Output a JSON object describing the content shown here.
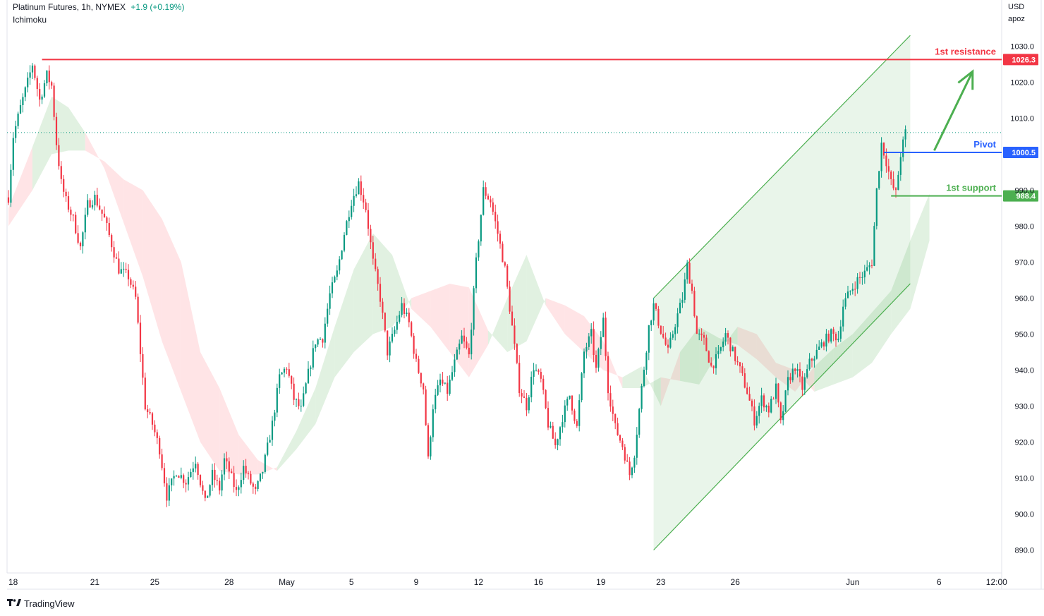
{
  "header": {
    "symbol": "Platinum Futures, 1h, NYMEX",
    "change": "+1.9 (+0.19%)",
    "indicator": "Ichimoku"
  },
  "price_axis": {
    "currency": "USD",
    "unit": "apoz"
  },
  "footer": {
    "brand": "TradingView",
    "logo_icon": "tradingview-logo-icon"
  },
  "colors": {
    "up": "#089981",
    "down": "#f23645",
    "resistance": "#f23645",
    "pivot": "#2962ff",
    "support": "#4caf50",
    "channel": "#4caf50",
    "cloud_bull": "#c8e6c9",
    "cloud_bear": "#ffcdd2"
  },
  "chart_data": {
    "type": "candlestick",
    "title": "Platinum Futures, 1h, NYMEX",
    "y_range": [
      885,
      1035
    ],
    "y_ticks": [
      1030,
      1020,
      1010,
      990,
      980,
      970,
      960,
      950,
      940,
      930,
      920,
      910,
      900,
      890
    ],
    "x_ticks": [
      {
        "label": "18",
        "i": 0
      },
      {
        "label": "21",
        "i": 36
      },
      {
        "label": "25",
        "i": 61
      },
      {
        "label": "28",
        "i": 92
      },
      {
        "label": "May",
        "i": 116
      },
      {
        "label": "5",
        "i": 143
      },
      {
        "label": "9",
        "i": 170
      },
      {
        "label": "12",
        "i": 196
      },
      {
        "label": "16",
        "i": 221
      },
      {
        "label": "19",
        "i": 247
      },
      {
        "label": "23",
        "i": 272
      },
      {
        "label": "26",
        "i": 303
      },
      {
        "label": "Jun",
        "i": 352
      },
      {
        "label": "6",
        "i": 388
      },
      {
        "label": "12:00",
        "i": 412
      }
    ],
    "last_price": 1006,
    "levels": [
      {
        "name": "1st resistance",
        "value": 1026.3,
        "label": "1026.3",
        "from_i": 14
      },
      {
        "name": "Pivot",
        "value": 1000.5,
        "label": "1000.5",
        "from_i": 365
      },
      {
        "name": "1st support",
        "value": 988.4,
        "label": "988.4",
        "from_i": 368
      }
    ],
    "channel": {
      "upper": [
        [
          269,
          960
        ],
        [
          376,
          1033
        ]
      ],
      "lower": [
        [
          269,
          890
        ],
        [
          376,
          964
        ]
      ],
      "end_i": 376
    },
    "arrow": {
      "from": [
        386,
        1001
      ],
      "to": [
        402,
        1023
      ]
    },
    "keypoints": [
      [
        0,
        988
      ],
      [
        2,
        1005
      ],
      [
        5,
        1013
      ],
      [
        8,
        1020
      ],
      [
        10,
        1025
      ],
      [
        13,
        1015
      ],
      [
        16,
        1022
      ],
      [
        18,
        1019
      ],
      [
        20,
        1003
      ],
      [
        22,
        992
      ],
      [
        24,
        987
      ],
      [
        27,
        982
      ],
      [
        30,
        974
      ],
      [
        33,
        986
      ],
      [
        36,
        988
      ],
      [
        40,
        982
      ],
      [
        43,
        975
      ],
      [
        46,
        968
      ],
      [
        50,
        966
      ],
      [
        53,
        960
      ],
      [
        55,
        945
      ],
      [
        57,
        930
      ],
      [
        60,
        925
      ],
      [
        63,
        918
      ],
      [
        66,
        905
      ],
      [
        70,
        912
      ],
      [
        74,
        909
      ],
      [
        78,
        915
      ],
      [
        82,
        903
      ],
      [
        85,
        911
      ],
      [
        88,
        907
      ],
      [
        90,
        915
      ],
      [
        92,
        912
      ],
      [
        95,
        906
      ],
      [
        98,
        913
      ],
      [
        100,
        910
      ],
      [
        103,
        906
      ],
      [
        106,
        912
      ],
      [
        110,
        925
      ],
      [
        113,
        938
      ],
      [
        116,
        941
      ],
      [
        119,
        932
      ],
      [
        122,
        929
      ],
      [
        125,
        939
      ],
      [
        128,
        948
      ],
      [
        131,
        949
      ],
      [
        134,
        961
      ],
      [
        137,
        967
      ],
      [
        140,
        978
      ],
      [
        143,
        987
      ],
      [
        146,
        992
      ],
      [
        149,
        985
      ],
      [
        152,
        970
      ],
      [
        155,
        960
      ],
      [
        158,
        945
      ],
      [
        161,
        951
      ],
      [
        164,
        958
      ],
      [
        167,
        953
      ],
      [
        170,
        942
      ],
      [
        173,
        935
      ],
      [
        175,
        915
      ],
      [
        177,
        930
      ],
      [
        180,
        937
      ],
      [
        183,
        934
      ],
      [
        186,
        942
      ],
      [
        189,
        949
      ],
      [
        192,
        944
      ],
      [
        195,
        970
      ],
      [
        198,
        990
      ],
      [
        201,
        987
      ],
      [
        204,
        978
      ],
      [
        207,
        968
      ],
      [
        210,
        952
      ],
      [
        213,
        935
      ],
      [
        216,
        930
      ],
      [
        219,
        941
      ],
      [
        222,
        937
      ],
      [
        225,
        925
      ],
      [
        228,
        919
      ],
      [
        231,
        927
      ],
      [
        234,
        933
      ],
      [
        237,
        924
      ],
      [
        240,
        945
      ],
      [
        243,
        950
      ],
      [
        245,
        940
      ],
      [
        248,
        954
      ],
      [
        250,
        935
      ],
      [
        253,
        924
      ],
      [
        256,
        919
      ],
      [
        259,
        911
      ],
      [
        261,
        917
      ],
      [
        264,
        935
      ],
      [
        267,
        952
      ],
      [
        269,
        958
      ],
      [
        272,
        951
      ],
      [
        275,
        945
      ],
      [
        278,
        953
      ],
      [
        281,
        960
      ],
      [
        283,
        969
      ],
      [
        285,
        962
      ],
      [
        287,
        950
      ],
      [
        290,
        948
      ],
      [
        293,
        941
      ],
      [
        296,
        944
      ],
      [
        299,
        950
      ],
      [
        302,
        945
      ],
      [
        305,
        940
      ],
      [
        308,
        934
      ],
      [
        311,
        926
      ],
      [
        314,
        932
      ],
      [
        317,
        929
      ],
      [
        320,
        935
      ],
      [
        322,
        925
      ],
      [
        325,
        937
      ],
      [
        328,
        941
      ],
      [
        331,
        935
      ],
      [
        334,
        942
      ],
      [
        337,
        945
      ],
      [
        340,
        948
      ],
      [
        343,
        950
      ],
      [
        346,
        949
      ],
      [
        348,
        958
      ],
      [
        351,
        962
      ],
      [
        354,
        965
      ],
      [
        357,
        967
      ],
      [
        360,
        970
      ],
      [
        362,
        990
      ],
      [
        364,
        1003
      ],
      [
        366,
        998
      ],
      [
        368,
        992
      ],
      [
        370,
        989
      ],
      [
        372,
        1000
      ],
      [
        374,
        1006
      ]
    ],
    "cloud": [
      [
        0,
        985,
        980,
        -1
      ],
      [
        10,
        1002,
        990,
        1
      ],
      [
        18,
        1016,
        1000,
        1
      ],
      [
        25,
        1013,
        1001,
        1
      ],
      [
        32,
        1006,
        1001,
        -1
      ],
      [
        40,
        996,
        998,
        -1
      ],
      [
        48,
        981,
        993,
        -1
      ],
      [
        56,
        966,
        990,
        -1
      ],
      [
        64,
        948,
        982,
        -1
      ],
      [
        72,
        934,
        970,
        -1
      ],
      [
        80,
        920,
        945,
        -1
      ],
      [
        88,
        912,
        935,
        -1
      ],
      [
        96,
        911,
        922,
        -1
      ],
      [
        104,
        911,
        915,
        -1
      ],
      [
        112,
        913,
        912,
        1
      ],
      [
        120,
        923,
        918,
        1
      ],
      [
        128,
        935,
        925,
        1
      ],
      [
        136,
        952,
        938,
        1
      ],
      [
        144,
        968,
        945,
        1
      ],
      [
        152,
        978,
        950,
        1
      ],
      [
        160,
        972,
        952,
        1
      ],
      [
        168,
        957,
        960,
        -1
      ],
      [
        176,
        952,
        962,
        -1
      ],
      [
        184,
        945,
        964,
        -1
      ],
      [
        192,
        938,
        963,
        -1
      ],
      [
        200,
        947,
        951,
        1
      ],
      [
        208,
        960,
        945,
        1
      ],
      [
        216,
        972,
        948,
        1
      ],
      [
        224,
        958,
        960,
        -1
      ],
      [
        232,
        950,
        958,
        -1
      ],
      [
        240,
        945,
        955,
        -1
      ],
      [
        248,
        940,
        948,
        -1
      ],
      [
        256,
        938,
        935,
        1
      ],
      [
        264,
        941,
        935,
        1
      ],
      [
        272,
        930,
        938,
        -1
      ],
      [
        280,
        945,
        937,
        1
      ],
      [
        288,
        952,
        936,
        1
      ],
      [
        296,
        949,
        945,
        1
      ],
      [
        304,
        947,
        952,
        -1
      ],
      [
        312,
        943,
        950,
        -1
      ],
      [
        320,
        938,
        942,
        -1
      ],
      [
        328,
        934,
        940,
        -1
      ],
      [
        336,
        941,
        934,
        1
      ],
      [
        344,
        946,
        936,
        1
      ],
      [
        352,
        950,
        938,
        1
      ],
      [
        360,
        956,
        942,
        1
      ],
      [
        368,
        962,
        950,
        1
      ],
      [
        376,
        976,
        957,
        1
      ],
      [
        384,
        989,
        976,
        1
      ]
    ]
  }
}
